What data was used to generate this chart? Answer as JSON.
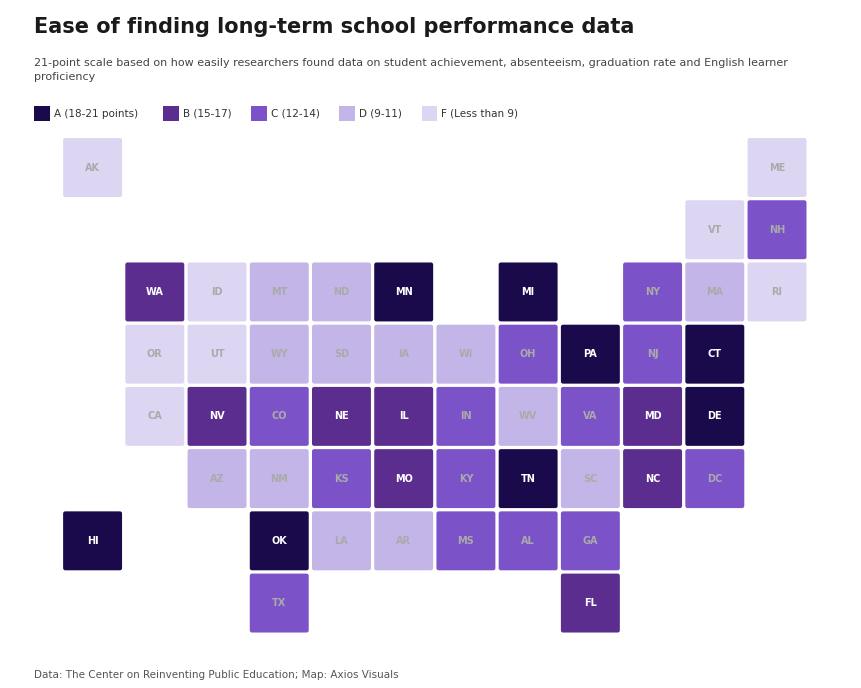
{
  "title": "Ease of finding long-term school performance data",
  "subtitle": "21-point scale based on how easily researchers found data on student achievement, absenteeism, graduation rate and English learner\nproficiency",
  "footer": "Data: The Center on Reinventing Public Education; Map: Axios Visuals",
  "legend": [
    {
      "label": "A (18-21 points)",
      "color": "#1a0a4b"
    },
    {
      "label": "B (15-17)",
      "color": "#5b2d8e"
    },
    {
      "label": "C (12-14)",
      "color": "#7b52c8"
    },
    {
      "label": "D (9-11)",
      "color": "#c4b5e8"
    },
    {
      "label": "F (Less than 9)",
      "color": "#ddd6f3"
    }
  ],
  "colors": {
    "A": "#1a0a4b",
    "B": "#5b2d8e",
    "C": "#7b52c8",
    "D": "#c4b5e8",
    "F": "#ddd6f3"
  },
  "states": [
    {
      "abbr": "AK",
      "col": 0,
      "row": 0,
      "grade": "F"
    },
    {
      "abbr": "ME",
      "col": 11,
      "row": 0,
      "grade": "F"
    },
    {
      "abbr": "VT",
      "col": 10,
      "row": 1,
      "grade": "F"
    },
    {
      "abbr": "NH",
      "col": 11,
      "row": 1,
      "grade": "C"
    },
    {
      "abbr": "WA",
      "col": 1,
      "row": 2,
      "grade": "B"
    },
    {
      "abbr": "ID",
      "col": 2,
      "row": 2,
      "grade": "F"
    },
    {
      "abbr": "MT",
      "col": 3,
      "row": 2,
      "grade": "D"
    },
    {
      "abbr": "ND",
      "col": 4,
      "row": 2,
      "grade": "D"
    },
    {
      "abbr": "MN",
      "col": 5,
      "row": 2,
      "grade": "A"
    },
    {
      "abbr": "MI",
      "col": 7,
      "row": 2,
      "grade": "A"
    },
    {
      "abbr": "NY",
      "col": 9,
      "row": 2,
      "grade": "C"
    },
    {
      "abbr": "MA",
      "col": 10,
      "row": 2,
      "grade": "D"
    },
    {
      "abbr": "RI",
      "col": 11,
      "row": 2,
      "grade": "F"
    },
    {
      "abbr": "OR",
      "col": 1,
      "row": 3,
      "grade": "F"
    },
    {
      "abbr": "UT",
      "col": 2,
      "row": 3,
      "grade": "F"
    },
    {
      "abbr": "WY",
      "col": 3,
      "row": 3,
      "grade": "D"
    },
    {
      "abbr": "SD",
      "col": 4,
      "row": 3,
      "grade": "D"
    },
    {
      "abbr": "IA",
      "col": 5,
      "row": 3,
      "grade": "D"
    },
    {
      "abbr": "WI",
      "col": 6,
      "row": 3,
      "grade": "D"
    },
    {
      "abbr": "OH",
      "col": 7,
      "row": 3,
      "grade": "C"
    },
    {
      "abbr": "PA",
      "col": 8,
      "row": 3,
      "grade": "A"
    },
    {
      "abbr": "NJ",
      "col": 9,
      "row": 3,
      "grade": "C"
    },
    {
      "abbr": "CT",
      "col": 10,
      "row": 3,
      "grade": "A"
    },
    {
      "abbr": "CA",
      "col": 1,
      "row": 4,
      "grade": "F"
    },
    {
      "abbr": "NV",
      "col": 2,
      "row": 4,
      "grade": "B"
    },
    {
      "abbr": "CO",
      "col": 3,
      "row": 4,
      "grade": "C"
    },
    {
      "abbr": "NE",
      "col": 4,
      "row": 4,
      "grade": "B"
    },
    {
      "abbr": "IL",
      "col": 5,
      "row": 4,
      "grade": "B"
    },
    {
      "abbr": "IN",
      "col": 6,
      "row": 4,
      "grade": "C"
    },
    {
      "abbr": "WV",
      "col": 7,
      "row": 4,
      "grade": "D"
    },
    {
      "abbr": "VA",
      "col": 8,
      "row": 4,
      "grade": "C"
    },
    {
      "abbr": "MD",
      "col": 9,
      "row": 4,
      "grade": "B"
    },
    {
      "abbr": "DE",
      "col": 10,
      "row": 4,
      "grade": "A"
    },
    {
      "abbr": "AZ",
      "col": 2,
      "row": 5,
      "grade": "D"
    },
    {
      "abbr": "NM",
      "col": 3,
      "row": 5,
      "grade": "D"
    },
    {
      "abbr": "KS",
      "col": 4,
      "row": 5,
      "grade": "C"
    },
    {
      "abbr": "MO",
      "col": 5,
      "row": 5,
      "grade": "B"
    },
    {
      "abbr": "KY",
      "col": 6,
      "row": 5,
      "grade": "C"
    },
    {
      "abbr": "TN",
      "col": 7,
      "row": 5,
      "grade": "A"
    },
    {
      "abbr": "SC",
      "col": 8,
      "row": 5,
      "grade": "D"
    },
    {
      "abbr": "NC",
      "col": 9,
      "row": 5,
      "grade": "B"
    },
    {
      "abbr": "DC",
      "col": 10,
      "row": 5,
      "grade": "C"
    },
    {
      "abbr": "HI",
      "col": 0,
      "row": 6,
      "grade": "A"
    },
    {
      "abbr": "OK",
      "col": 3,
      "row": 6,
      "grade": "A"
    },
    {
      "abbr": "LA",
      "col": 4,
      "row": 6,
      "grade": "D"
    },
    {
      "abbr": "AR",
      "col": 5,
      "row": 6,
      "grade": "D"
    },
    {
      "abbr": "MS",
      "col": 6,
      "row": 6,
      "grade": "C"
    },
    {
      "abbr": "AL",
      "col": 7,
      "row": 6,
      "grade": "C"
    },
    {
      "abbr": "GA",
      "col": 8,
      "row": 6,
      "grade": "C"
    },
    {
      "abbr": "TX",
      "col": 3,
      "row": 7,
      "grade": "C"
    },
    {
      "abbr": "FL",
      "col": 8,
      "row": 7,
      "grade": "B"
    }
  ],
  "bg_color": "#ffffff",
  "num_cols": 12,
  "num_rows": 8
}
